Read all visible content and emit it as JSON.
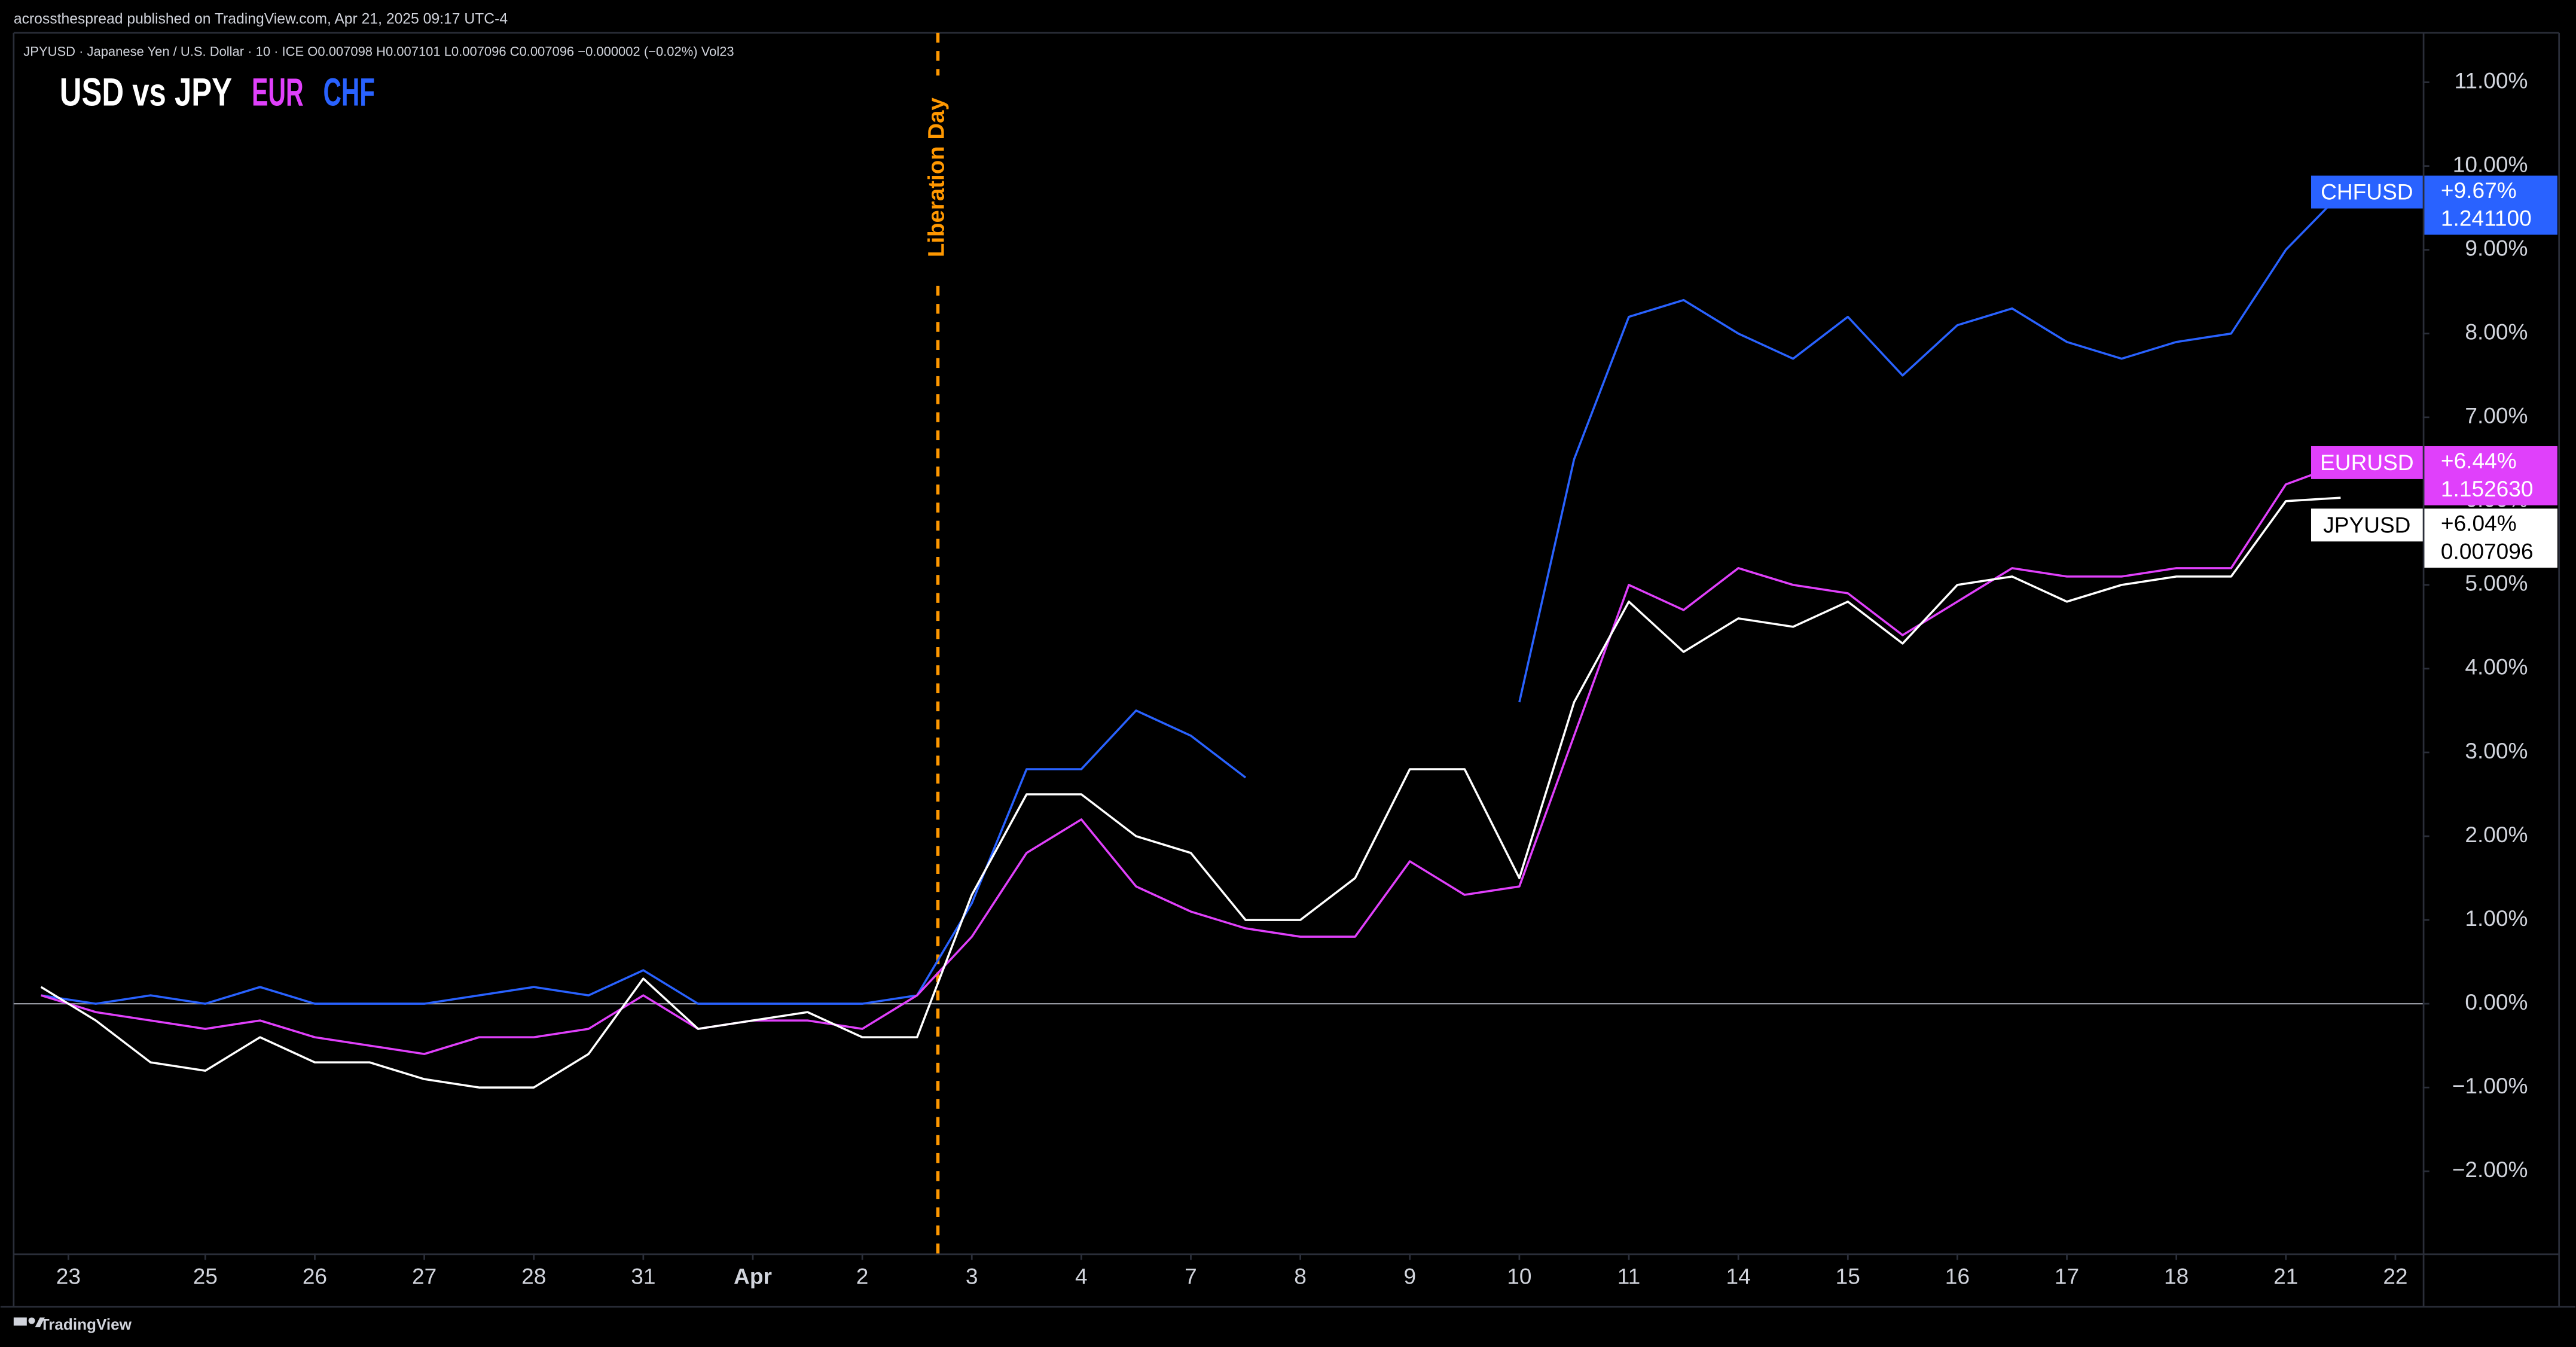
{
  "header": {
    "publisher": "acrossthespread published on TradingView.com, Apr 21, 2025 09:17 UTC-4",
    "symbol_line": "JPYUSD · Japanese Yen / U.S. Dollar · 10 · ICE  O0.007098  H0.007101  L0.007096  C0.007096  −0.000002 (−0.02%)  Vol23"
  },
  "footer": {
    "brand": "TradingView"
  },
  "chart_data": {
    "type": "line",
    "title_parts": [
      {
        "text": "USD vs JPY",
        "color": "#ffffff"
      },
      {
        "text": "EUR",
        "color": "#e040fb"
      },
      {
        "text": "CHF",
        "color": "#2962ff"
      }
    ],
    "x": [
      -0.5,
      0,
      0.5,
      1,
      1.5,
      2,
      2.5,
      3,
      3.5,
      4,
      4.5,
      5,
      5.5,
      6,
      6.5,
      7,
      7.5,
      8,
      8.5,
      9,
      9.5,
      10,
      10.5,
      11,
      11.5,
      12,
      12.5,
      13,
      13.5,
      14,
      14.5,
      15,
      15.5,
      16,
      16.5,
      17,
      17.5,
      18,
      18.5,
      19,
      19.5,
      20,
      20.5
    ],
    "series": [
      {
        "name": "CHFUSD",
        "color": "#2962ff",
        "last_change": "+9.67%",
        "last_price": "1.241100",
        "values": [
          0.1,
          0.0,
          0.1,
          0.0,
          0.2,
          0.0,
          0.0,
          0.0,
          0.1,
          0.2,
          0.1,
          0.4,
          0.0,
          0.0,
          0.0,
          0.0,
          0.1,
          1.2,
          2.8,
          2.8,
          3.5,
          3.2,
          2.7,
          null,
          null,
          null,
          null,
          3.6,
          6.5,
          8.2,
          8.4,
          8.0,
          7.7,
          8.2,
          7.5,
          8.1,
          8.3,
          7.9,
          7.7,
          7.9,
          8.0,
          9.0,
          9.67
        ]
      },
      {
        "name": "EURUSD",
        "color": "#e040fb",
        "last_change": "+6.44%",
        "last_price": "1.152630",
        "values": [
          0.1,
          -0.1,
          -0.2,
          -0.3,
          -0.2,
          -0.4,
          -0.5,
          -0.6,
          -0.4,
          -0.4,
          -0.3,
          0.1,
          -0.3,
          -0.2,
          -0.2,
          -0.3,
          0.1,
          0.8,
          1.8,
          2.2,
          1.4,
          1.1,
          0.9,
          0.8,
          0.8,
          1.7,
          1.3,
          1.4,
          3.2,
          5.0,
          4.7,
          5.2,
          5.0,
          4.9,
          4.4,
          4.8,
          5.2,
          5.1,
          5.1,
          5.2,
          5.2,
          6.2,
          6.44
        ]
      },
      {
        "name": "JPYUSD",
        "color": "#ffffff",
        "last_change": "+6.04%",
        "last_price": "0.007096",
        "values": [
          0.2,
          -0.2,
          -0.7,
          -0.8,
          -0.4,
          -0.7,
          -0.7,
          -0.9,
          -1.0,
          -1.0,
          -0.6,
          0.3,
          -0.3,
          -0.2,
          -0.1,
          -0.4,
          -0.4,
          1.3,
          2.5,
          2.5,
          2.0,
          1.8,
          1.0,
          1.0,
          1.5,
          2.8,
          2.8,
          1.5,
          3.6,
          4.8,
          4.2,
          4.6,
          4.5,
          4.8,
          4.3,
          5.0,
          5.1,
          4.8,
          5.0,
          5.1,
          5.1,
          6.0,
          6.04
        ]
      }
    ],
    "xlim": [
      -0.75,
      21.25
    ],
    "xticks": [
      {
        "value": -0.25,
        "label": "23"
      },
      {
        "value": 1,
        "label": "25"
      },
      {
        "value": 2,
        "label": "26"
      },
      {
        "value": 3,
        "label": "27"
      },
      {
        "value": 4,
        "label": "28"
      },
      {
        "value": 5,
        "label": "31"
      },
      {
        "value": 6,
        "label": "Apr"
      },
      {
        "value": 7,
        "label": "2"
      },
      {
        "value": 8,
        "label": "3"
      },
      {
        "value": 9,
        "label": "4"
      },
      {
        "value": 10,
        "label": "7"
      },
      {
        "value": 11,
        "label": "8"
      },
      {
        "value": 12,
        "label": "9"
      },
      {
        "value": 13,
        "label": "10"
      },
      {
        "value": 14,
        "label": "11"
      },
      {
        "value": 15,
        "label": "14"
      },
      {
        "value": 16,
        "label": "15"
      },
      {
        "value": 17,
        "label": "16"
      },
      {
        "value": 18,
        "label": "17"
      },
      {
        "value": 19,
        "label": "18"
      },
      {
        "value": 20,
        "label": "21"
      },
      {
        "value": 21,
        "label": "22"
      }
    ],
    "ylim": [
      -2.98,
      11.59
    ],
    "yticks": [
      {
        "value": -2,
        "label": "−2.00%"
      },
      {
        "value": -1,
        "label": "−1.00%"
      },
      {
        "value": 0,
        "label": "0.00%"
      },
      {
        "value": 1,
        "label": "1.00%"
      },
      {
        "value": 2,
        "label": "2.00%"
      },
      {
        "value": 3,
        "label": "3.00%"
      },
      {
        "value": 4,
        "label": "4.00%"
      },
      {
        "value": 5,
        "label": "5.00%"
      },
      {
        "value": 6,
        "label": "6.00%"
      },
      {
        "value": 7,
        "label": "7.00%"
      },
      {
        "value": 8,
        "label": "8.00%"
      },
      {
        "value": 9,
        "label": "9.00%"
      },
      {
        "value": 10,
        "label": "10.00%"
      },
      {
        "value": 11,
        "label": "11.00%"
      }
    ],
    "baseline": 0,
    "annotations": [
      {
        "x": 7.69,
        "text": "Liberation Day",
        "color": "#ff9800"
      }
    ]
  }
}
